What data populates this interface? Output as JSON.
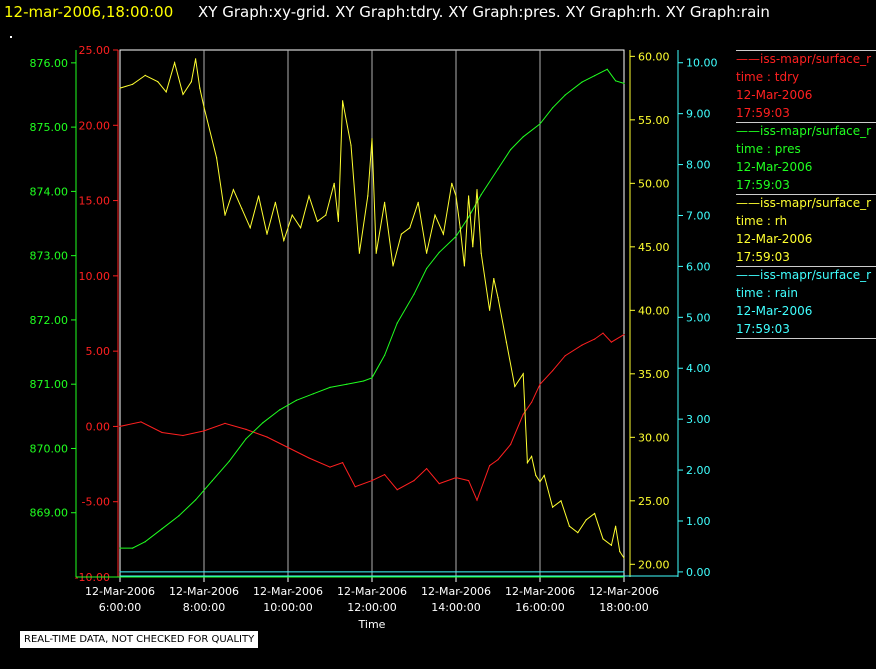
{
  "header": {
    "timestamp": "12-mar-2006,18:00:00",
    "graph_titles": "XY Graph:xy-grid.  XY Graph:tdry.  XY Graph:pres.  XY Graph:rh.  XY Graph:rain"
  },
  "qc_note": "REAL-TIME DATA, NOT CHECKED FOR QUALITY",
  "colors": {
    "tdry": "#ff2020",
    "pres": "#20ff20",
    "rh": "#ffff30",
    "rain": "#40ffff",
    "grid": "#b0b0b0",
    "frame": "#ffffff"
  },
  "legend": [
    {
      "series": "iss-mapr/surface_r",
      "param": "time : tdry",
      "date": "12-Mar-2006",
      "time": "17:59:03",
      "color": "#ff2020"
    },
    {
      "series": "iss-mapr/surface_r",
      "param": "time : pres",
      "date": "12-Mar-2006",
      "time": "17:59:03",
      "color": "#20ff20"
    },
    {
      "series": "iss-mapr/surface_r",
      "param": "time : rh",
      "date": "12-Mar-2006",
      "time": "17:59:03",
      "color": "#ffff30"
    },
    {
      "series": "iss-mapr/surface_r",
      "param": "time : rain",
      "date": "12-Mar-2006",
      "time": "17:59:03",
      "color": "#40ffff"
    }
  ],
  "chart_data": {
    "type": "line",
    "xlabel": "Time",
    "xlim": [
      6.0,
      18.0
    ],
    "x_ticks": [
      {
        "value": 6,
        "date": "12-Mar-2006",
        "time": "6:00:00"
      },
      {
        "value": 8,
        "date": "12-Mar-2006",
        "time": "8:00:00"
      },
      {
        "value": 10,
        "date": "12-Mar-2006",
        "time": "10:00:00"
      },
      {
        "value": 12,
        "date": "12-Mar-2006",
        "time": "12:00:00"
      },
      {
        "value": 14,
        "date": "12-Mar-2006",
        "time": "14:00:00"
      },
      {
        "value": 16,
        "date": "12-Mar-2006",
        "time": "16:00:00"
      },
      {
        "value": 18,
        "date": "12-Mar-2006",
        "time": "18:00:00"
      }
    ],
    "grid": "vertical",
    "axes": [
      {
        "id": "pres",
        "side": "left-outer",
        "ylim": [
          868.0,
          876.2
        ],
        "ticks": [
          "869.00",
          "870.00",
          "871.00",
          "872.00",
          "873.00",
          "874.00",
          "875.00",
          "876.00"
        ],
        "tick_values": [
          869,
          870,
          871,
          872,
          873,
          874,
          875,
          876
        ]
      },
      {
        "id": "tdry",
        "side": "left-inner",
        "ylim": [
          -10.0,
          25.0
        ],
        "ticks": [
          "-10.00",
          "-5.00",
          "0.00",
          "5.00",
          "10.00",
          "15.00",
          "20.00",
          "25.00"
        ],
        "tick_values": [
          -10,
          -5,
          0,
          5,
          10,
          15,
          20,
          25
        ]
      },
      {
        "id": "rh",
        "side": "right-inner",
        "ylim": [
          19.0,
          60.5
        ],
        "ticks": [
          "20.00",
          "25.00",
          "30.00",
          "35.00",
          "40.00",
          "45.00",
          "50.00",
          "55.00",
          "60.00"
        ],
        "tick_values": [
          20,
          25,
          30,
          35,
          40,
          45,
          50,
          55,
          60
        ]
      },
      {
        "id": "rain",
        "side": "right-outer",
        "ylim": [
          -0.1,
          10.25
        ],
        "ticks": [
          "0.00",
          "1.00",
          "2.00",
          "3.00",
          "4.00",
          "5.00",
          "6.00",
          "7.00",
          "8.00",
          "9.00",
          "10.00"
        ],
        "tick_values": [
          0,
          1,
          2,
          3,
          4,
          5,
          6,
          7,
          8,
          9,
          10
        ]
      }
    ],
    "series": [
      {
        "name": "time : tdry",
        "axis": "tdry",
        "x": [
          6.0,
          6.5,
          7.0,
          7.5,
          8.0,
          8.5,
          9.0,
          9.5,
          10.0,
          10.5,
          11.0,
          11.3,
          11.6,
          12.0,
          12.3,
          12.6,
          13.0,
          13.3,
          13.6,
          14.0,
          14.3,
          14.5,
          14.8,
          15.0,
          15.3,
          15.6,
          15.8,
          16.0,
          16.3,
          16.6,
          17.0,
          17.3,
          17.5,
          17.7,
          18.0
        ],
        "y": [
          0.0,
          0.3,
          -0.4,
          -0.6,
          -0.3,
          0.2,
          -0.2,
          -0.7,
          -1.4,
          -2.1,
          -2.7,
          -2.4,
          -4.0,
          -3.6,
          -3.2,
          -4.2,
          -3.6,
          -2.8,
          -3.8,
          -3.4,
          -3.6,
          -4.9,
          -2.6,
          -2.2,
          -1.2,
          0.8,
          1.6,
          2.8,
          3.7,
          4.7,
          5.4,
          5.8,
          6.2,
          5.6,
          6.1
        ]
      },
      {
        "name": "time : pres",
        "axis": "pres",
        "x": [
          6.0,
          6.3,
          6.6,
          7.0,
          7.4,
          7.8,
          8.2,
          8.6,
          9.0,
          9.4,
          9.8,
          10.2,
          10.6,
          11.0,
          11.4,
          11.8,
          12.0,
          12.3,
          12.6,
          13.0,
          13.3,
          13.6,
          14.0,
          14.3,
          14.6,
          15.0,
          15.3,
          15.6,
          16.0,
          16.3,
          16.6,
          17.0,
          17.3,
          17.6,
          17.8,
          18.0
        ],
        "y": [
          868.45,
          868.45,
          868.55,
          868.75,
          868.95,
          869.2,
          869.5,
          869.8,
          870.15,
          870.4,
          870.6,
          870.75,
          870.85,
          870.95,
          871.0,
          871.05,
          871.1,
          871.45,
          871.95,
          872.4,
          872.8,
          873.05,
          873.3,
          873.6,
          873.95,
          874.35,
          874.65,
          874.85,
          875.05,
          875.3,
          875.5,
          875.7,
          875.8,
          875.9,
          875.72,
          875.68
        ]
      },
      {
        "name": "time : rh",
        "axis": "rh",
        "x": [
          6.0,
          6.3,
          6.6,
          6.9,
          7.1,
          7.3,
          7.5,
          7.7,
          7.8,
          7.9,
          8.0,
          8.3,
          8.5,
          8.7,
          8.9,
          9.1,
          9.3,
          9.5,
          9.7,
          9.9,
          10.1,
          10.3,
          10.5,
          10.7,
          10.9,
          11.1,
          11.2,
          11.3,
          11.5,
          11.7,
          11.9,
          12.0,
          12.1,
          12.3,
          12.5,
          12.7,
          12.9,
          13.1,
          13.3,
          13.5,
          13.7,
          13.9,
          14.0,
          14.1,
          14.2,
          14.3,
          14.4,
          14.5,
          14.6,
          14.8,
          14.9,
          15.0,
          15.2,
          15.4,
          15.6,
          15.7,
          15.8,
          15.9,
          16.0,
          16.1,
          16.3,
          16.5,
          16.7,
          16.9,
          17.1,
          17.3,
          17.5,
          17.7,
          17.8,
          17.9,
          18.0
        ],
        "y": [
          57.5,
          57.8,
          58.5,
          58.0,
          57.2,
          59.5,
          57.0,
          58.0,
          59.8,
          57.5,
          56.0,
          52.0,
          47.5,
          49.5,
          48.0,
          46.5,
          49.0,
          46.0,
          48.5,
          45.5,
          47.5,
          46.5,
          49.0,
          47.0,
          47.5,
          50.0,
          47.0,
          56.5,
          53.0,
          44.5,
          49.0,
          53.5,
          44.5,
          48.5,
          43.5,
          46.0,
          46.5,
          48.5,
          44.5,
          47.5,
          46.0,
          50.0,
          49.0,
          46.5,
          43.5,
          49.0,
          45.0,
          49.5,
          44.5,
          40.0,
          42.5,
          41.0,
          37.5,
          34.0,
          35.0,
          28.0,
          28.5,
          27.0,
          26.5,
          27.0,
          24.5,
          25.0,
          23.0,
          22.5,
          23.5,
          24.0,
          22.0,
          21.5,
          23.0,
          21.0,
          20.5
        ]
      },
      {
        "name": "time : rain",
        "axis": "rain",
        "x": [
          6.0,
          18.0
        ],
        "y": [
          0.0,
          0.0
        ]
      }
    ]
  }
}
